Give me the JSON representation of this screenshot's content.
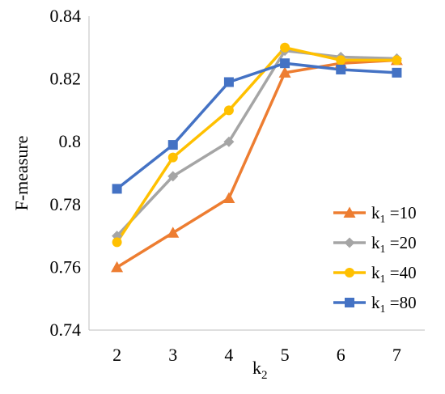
{
  "chart_data": {
    "type": "line",
    "title": "",
    "xlabel": "k",
    "xlabel_subscript": "2",
    "ylabel": "F-measure",
    "x": [
      2,
      3,
      4,
      5,
      6,
      7
    ],
    "x_tick_labels": [
      "2",
      "3",
      "4",
      "5",
      "6",
      "7"
    ],
    "ylim": [
      0.74,
      0.84
    ],
    "y_ticks": [
      0.74,
      0.76,
      0.78,
      0.8,
      0.82,
      0.84
    ],
    "y_tick_labels": [
      "0.74",
      "0.76",
      "0.78",
      "0.8",
      "0.82",
      "0.84"
    ],
    "grid": false,
    "legend_position": "bottom-right",
    "series": [
      {
        "name": "k1 =10",
        "legend_prefix": "k",
        "legend_subscript": "1",
        "legend_suffix": " =10",
        "color": "#ED7D31",
        "marker": "triangle",
        "values": [
          0.76,
          0.771,
          0.782,
          0.822,
          0.825,
          0.826
        ]
      },
      {
        "name": "k1 =20",
        "legend_prefix": "k",
        "legend_subscript": "1",
        "legend_suffix": " =20",
        "color": "#A5A5A5",
        "marker": "diamond",
        "values": [
          0.77,
          0.789,
          0.8,
          0.829,
          0.827,
          0.8265
        ]
      },
      {
        "name": "k1 =40",
        "legend_prefix": "k",
        "legend_subscript": "1",
        "legend_suffix": " =40",
        "color": "#FFC000",
        "marker": "circle",
        "values": [
          0.768,
          0.795,
          0.81,
          0.83,
          0.826,
          0.826
        ]
      },
      {
        "name": "k1 =80",
        "legend_prefix": "k",
        "legend_subscript": "1",
        "legend_suffix": " =80",
        "color": "#4472C4",
        "marker": "square",
        "values": [
          0.785,
          0.799,
          0.819,
          0.825,
          0.823,
          0.822
        ]
      }
    ]
  }
}
